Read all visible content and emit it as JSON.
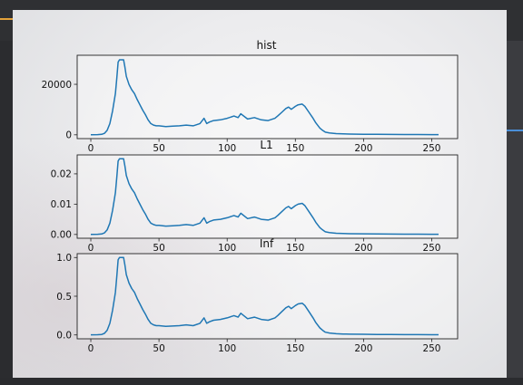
{
  "chart_data": [
    {
      "type": "line",
      "title": "hist",
      "xlabel": "",
      "ylabel": "",
      "xlim": [
        -10,
        269
      ],
      "ylim": [
        -1500,
        31500
      ],
      "xticks": [
        "0",
        "50",
        "100",
        "150",
        "200",
        "250"
      ],
      "yticks": [
        {
          "value": 0,
          "label": "0"
        },
        {
          "value": 20000,
          "label": "20000"
        }
      ],
      "grid": false,
      "color": "#1f77b4",
      "scale": 29700
    },
    {
      "type": "line",
      "title": "L1",
      "xlabel": "",
      "ylabel": "",
      "xlim": [
        -10,
        269
      ],
      "ylim": [
        -0.00125,
        0.02625
      ],
      "xticks": [
        "0",
        "50",
        "100",
        "150",
        "200",
        "250"
      ],
      "yticks": [
        {
          "value": 0,
          "label": "0.00"
        },
        {
          "value": 0.01,
          "label": "0.01"
        },
        {
          "value": 0.02,
          "label": "0.02"
        }
      ],
      "grid": false,
      "color": "#1f77b4",
      "scale": 0.025
    },
    {
      "type": "line",
      "title": "Inf",
      "xlabel": "",
      "ylabel": "",
      "xlim": [
        -10,
        269
      ],
      "ylim": [
        -0.05,
        1.05
      ],
      "xticks": [
        "0",
        "50",
        "100",
        "150",
        "200",
        "250"
      ],
      "yticks": [
        {
          "value": 0,
          "label": "0.0"
        },
        {
          "value": 0.5,
          "label": "0.5"
        },
        {
          "value": 1.0,
          "label": "1.0"
        }
      ],
      "grid": false,
      "color": "#1f77b4",
      "scale": 1.0
    }
  ],
  "shape": {
    "x": [
      0,
      5,
      8,
      10,
      12,
      14,
      16,
      18,
      19,
      20,
      21,
      22,
      23,
      24,
      25,
      26,
      28,
      30,
      32,
      34,
      36,
      38,
      40,
      42,
      44,
      46,
      48,
      50,
      55,
      60,
      65,
      70,
      75,
      80,
      83,
      85,
      87,
      90,
      95,
      100,
      105,
      108,
      110,
      115,
      120,
      125,
      130,
      135,
      137,
      140,
      143,
      145,
      147,
      150,
      152,
      155,
      157,
      160,
      163,
      165,
      168,
      170,
      172,
      175,
      180,
      185,
      190,
      200,
      210,
      220,
      230,
      240,
      250,
      255
    ],
    "y": [
      0.002,
      0.003,
      0.006,
      0.02,
      0.06,
      0.15,
      0.32,
      0.55,
      0.75,
      0.97,
      1.0,
      1.0,
      1.0,
      1.0,
      0.9,
      0.78,
      0.67,
      0.6,
      0.55,
      0.47,
      0.4,
      0.33,
      0.27,
      0.2,
      0.15,
      0.13,
      0.12,
      0.12,
      0.11,
      0.115,
      0.12,
      0.13,
      0.12,
      0.15,
      0.22,
      0.15,
      0.17,
      0.19,
      0.2,
      0.22,
      0.25,
      0.23,
      0.28,
      0.21,
      0.23,
      0.2,
      0.19,
      0.22,
      0.25,
      0.3,
      0.35,
      0.37,
      0.34,
      0.38,
      0.4,
      0.41,
      0.38,
      0.3,
      0.22,
      0.16,
      0.09,
      0.06,
      0.035,
      0.025,
      0.016,
      0.012,
      0.01,
      0.008,
      0.006,
      0.005,
      0.004,
      0.004,
      0.003,
      0.003
    ]
  }
}
